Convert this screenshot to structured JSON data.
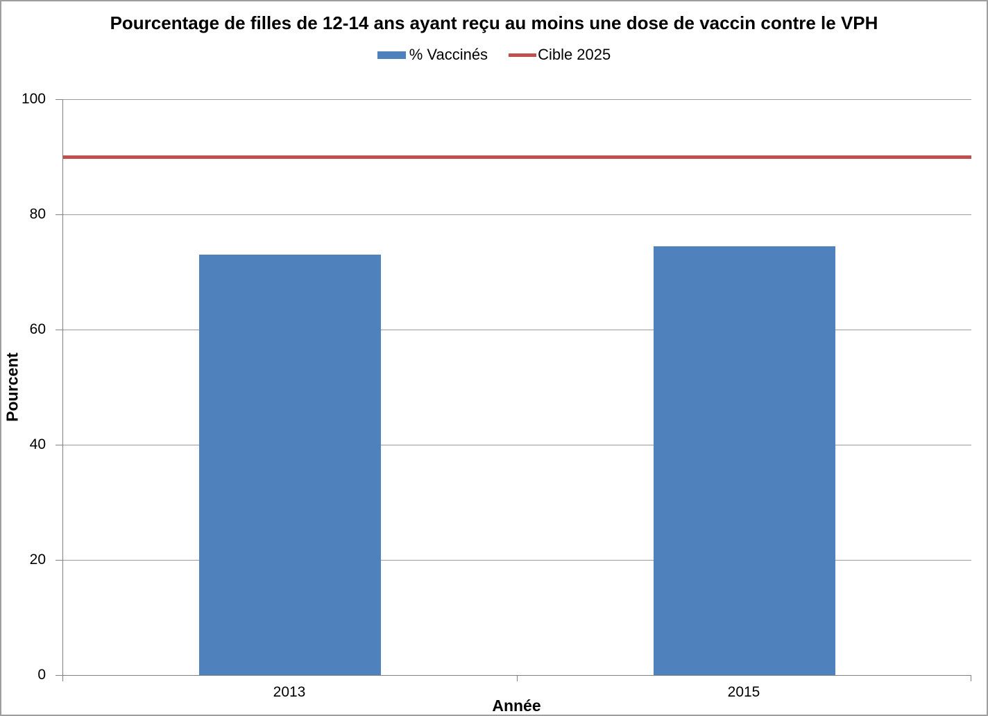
{
  "chart_data": {
    "type": "bar",
    "title": "Pourcentage de filles de 12-14 ans ayant reçu au moins une dose de vaccin contre le VPH",
    "xlabel": "Année",
    "ylabel": "Pourcent",
    "categories": [
      "2013",
      "2015"
    ],
    "series": [
      {
        "name": "% Vaccinés",
        "type": "bar",
        "color": "#4F81BD",
        "values": [
          73,
          74.4
        ]
      },
      {
        "name": "Cible 2025",
        "type": "line",
        "color": "#C0504D",
        "value": 90
      }
    ],
    "ylim": [
      0,
      100
    ],
    "yticks": [
      0,
      20,
      40,
      60,
      80,
      100
    ],
    "grid": true,
    "legend_position": "top-center"
  },
  "colors": {
    "bar": "#4F81BD",
    "target": "#C0504D",
    "axis": "#808080",
    "gridline": "#9B9B9B",
    "frame_border": "#9E9E9E",
    "background": "#FFFFFF"
  }
}
